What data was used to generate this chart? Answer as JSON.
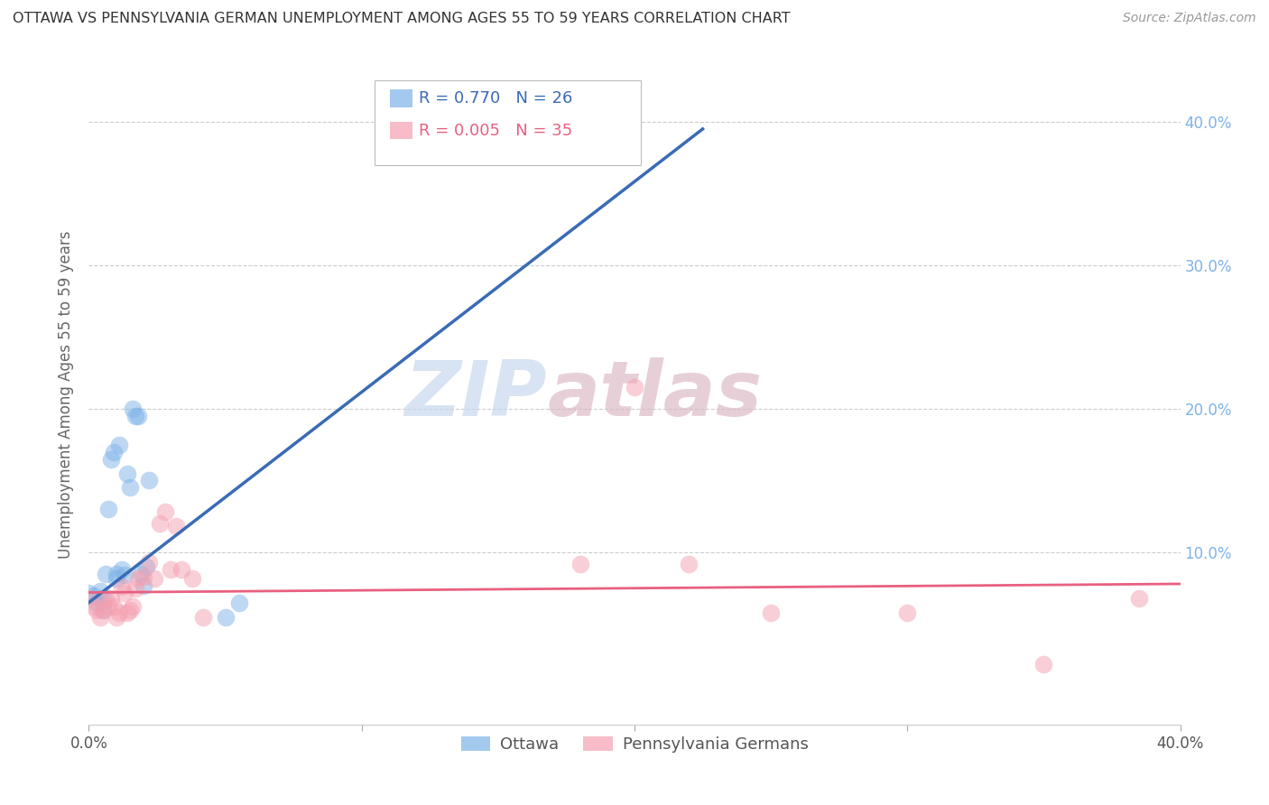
{
  "title": "OTTAWA VS PENNSYLVANIA GERMAN UNEMPLOYMENT AMONG AGES 55 TO 59 YEARS CORRELATION CHART",
  "source": "Source: ZipAtlas.com",
  "ylabel": "Unemployment Among Ages 55 to 59 years",
  "xlim": [
    0,
    0.4
  ],
  "ylim": [
    -0.02,
    0.44
  ],
  "ottawa_color": "#7EB3E8",
  "ottawa_line_color": "#3A6BB5",
  "penn_color": "#F5A0B0",
  "penn_line_color": "#E86080",
  "ottawa_R": 0.77,
  "ottawa_N": 26,
  "penn_R": 0.005,
  "penn_N": 35,
  "legend_label1": "Ottawa",
  "legend_label2": "Pennsylvania Germans",
  "watermark_zip": "ZIP",
  "watermark_atlas": "atlas",
  "ottawa_x": [
    0.0,
    0.002,
    0.003,
    0.004,
    0.005,
    0.005,
    0.006,
    0.007,
    0.008,
    0.009,
    0.01,
    0.01,
    0.011,
    0.012,
    0.013,
    0.014,
    0.015,
    0.016,
    0.017,
    0.018,
    0.019,
    0.02,
    0.021,
    0.022,
    0.05,
    0.055
  ],
  "ottawa_y": [
    0.072,
    0.07,
    0.065,
    0.073,
    0.068,
    0.06,
    0.085,
    0.13,
    0.165,
    0.17,
    0.082,
    0.085,
    0.175,
    0.088,
    0.084,
    0.155,
    0.145,
    0.2,
    0.195,
    0.195,
    0.085,
    0.077,
    0.09,
    0.15,
    0.055,
    0.065
  ],
  "penn_x": [
    0.0,
    0.002,
    0.003,
    0.004,
    0.005,
    0.006,
    0.007,
    0.008,
    0.009,
    0.01,
    0.011,
    0.012,
    0.013,
    0.014,
    0.015,
    0.016,
    0.017,
    0.018,
    0.02,
    0.022,
    0.024,
    0.026,
    0.028,
    0.03,
    0.032,
    0.034,
    0.038,
    0.042,
    0.18,
    0.2,
    0.22,
    0.25,
    0.3,
    0.35,
    0.385
  ],
  "penn_y": [
    0.068,
    0.062,
    0.06,
    0.055,
    0.06,
    0.068,
    0.062,
    0.068,
    0.062,
    0.055,
    0.058,
    0.076,
    0.072,
    0.058,
    0.06,
    0.062,
    0.075,
    0.082,
    0.083,
    0.093,
    0.082,
    0.12,
    0.128,
    0.088,
    0.118,
    0.088,
    0.082,
    0.055,
    0.092,
    0.215,
    0.092,
    0.058,
    0.058,
    0.022,
    0.068
  ],
  "ottawa_line_x": [
    0.0,
    0.22
  ],
  "ottawa_line_y_start": 0.065,
  "ottawa_line_y_end": 0.395,
  "penn_line_y_start": 0.072,
  "penn_line_y_end": 0.078
}
